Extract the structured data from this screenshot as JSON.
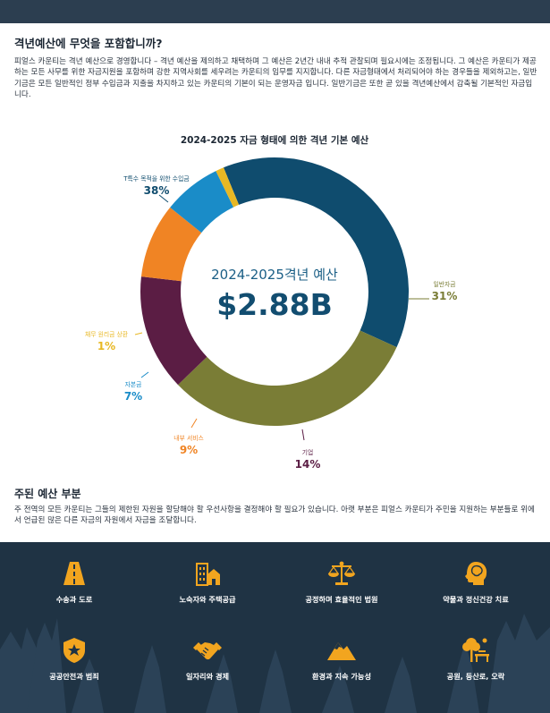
{
  "intro": {
    "title": "격년예산에 무엇을 포함합니까?",
    "paragraph": "피얼스 카운티는 격년 예산으로 경영합니다 – 격년 예산을 제의하고 채택하며 그 예산은 2년간 내내 추적 관찰되며 필요시에는 조정됩니다. 그 예산은 카운티가 제공하는 모든 사무를 위한 자금지원을 포함하며 강한 지역사회를 세우려는 카운티의 임무를 지지합니다. 다른 자금형태에서 처리되어야 하는 경우들을 제외하고는, 일반기금은 모든 일반적인 정부 수입금과 지출을 차지하고 있는 카운티의 기본이 되는 운영자금 입니다. 일반기금은 또한 곧 있을 격년예산에서 감축될 기본적인 자금입니다."
  },
  "chart_data": {
    "type": "pie",
    "title": "2024-2025 자금 형태에 의한 격년 기본 예산",
    "center_label": "2024-2025격년 예산",
    "center_value": "$2.88B",
    "slices": [
      {
        "label": "T특수 목적을 위한 수입금",
        "value": 38,
        "display": "38%",
        "color": "#0f4c6e"
      },
      {
        "label": "일반자금",
        "value": 31,
        "display": "31%",
        "color": "#7a7d36"
      },
      {
        "label": "기업",
        "value": 14,
        "display": "14%",
        "color": "#5b1d44"
      },
      {
        "label": "내부 서비스",
        "value": 9,
        "display": "9%",
        "color": "#f08424"
      },
      {
        "label": "자본금",
        "value": 7,
        "display": "7%",
        "color": "#1a8cc8"
      },
      {
        "label": "채무 원리금 상환",
        "value": 1,
        "display": "1%",
        "color": "#e8b824"
      }
    ]
  },
  "section2": {
    "title": "주된 예산 부분",
    "paragraph": "주 전역의 모든 카운티는 그들의 제한된 자원을 할당해야 할 우선사항을 결정해야 할 필요가 있습니다. 아랫 부분은 피얼스 카운티가 주민을 지원하는 부분들로 위에서 언급된 많은 다른 자금의 자원에서 자금을 조달합니다."
  },
  "footer": {
    "accent_color": "#f2a51f",
    "items": [
      {
        "label": "수송과 도로",
        "icon": "road-icon"
      },
      {
        "label": "노숙자와 주택공급",
        "icon": "housing-icon"
      },
      {
        "label": "공정하며 효율적인 법원",
        "icon": "scales-icon"
      },
      {
        "label": "약물과 정신건강 치료",
        "icon": "mental-health-icon"
      },
      {
        "label": "공공안전과 범죄",
        "icon": "badge-icon"
      },
      {
        "label": "일자리와 경제",
        "icon": "handshake-icon"
      },
      {
        "label": "환경과 지속 가능성",
        "icon": "mountain-icon"
      },
      {
        "label": "공원, 등산로, 오락",
        "icon": "park-icon"
      }
    ]
  }
}
